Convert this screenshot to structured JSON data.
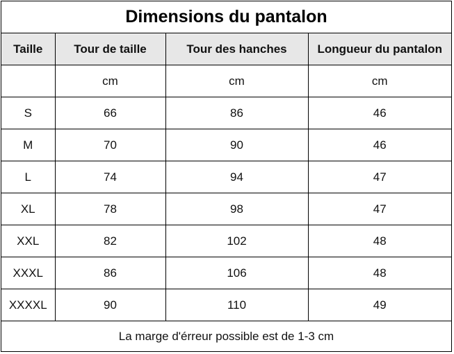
{
  "title": "Dimensions du pantalon",
  "headers": [
    "Taille",
    "Tour de taille",
    "Tour des hanches",
    "Longueur du pantalon"
  ],
  "units": [
    "",
    "cm",
    "cm",
    "cm"
  ],
  "rows": [
    [
      "S",
      "66",
      "86",
      "46"
    ],
    [
      "M",
      "70",
      "90",
      "46"
    ],
    [
      "L",
      "74",
      "94",
      "47"
    ],
    [
      "XL",
      "78",
      "98",
      "47"
    ],
    [
      "XXL",
      "82",
      "102",
      "48"
    ],
    [
      "XXXL",
      "86",
      "106",
      "48"
    ],
    [
      "XXXXL",
      "90",
      "110",
      "49"
    ]
  ],
  "footer": "La marge d'érreur possible est de 1-3 cm",
  "colors": {
    "header_bg": "#e7e7e7",
    "border": "#000000"
  }
}
